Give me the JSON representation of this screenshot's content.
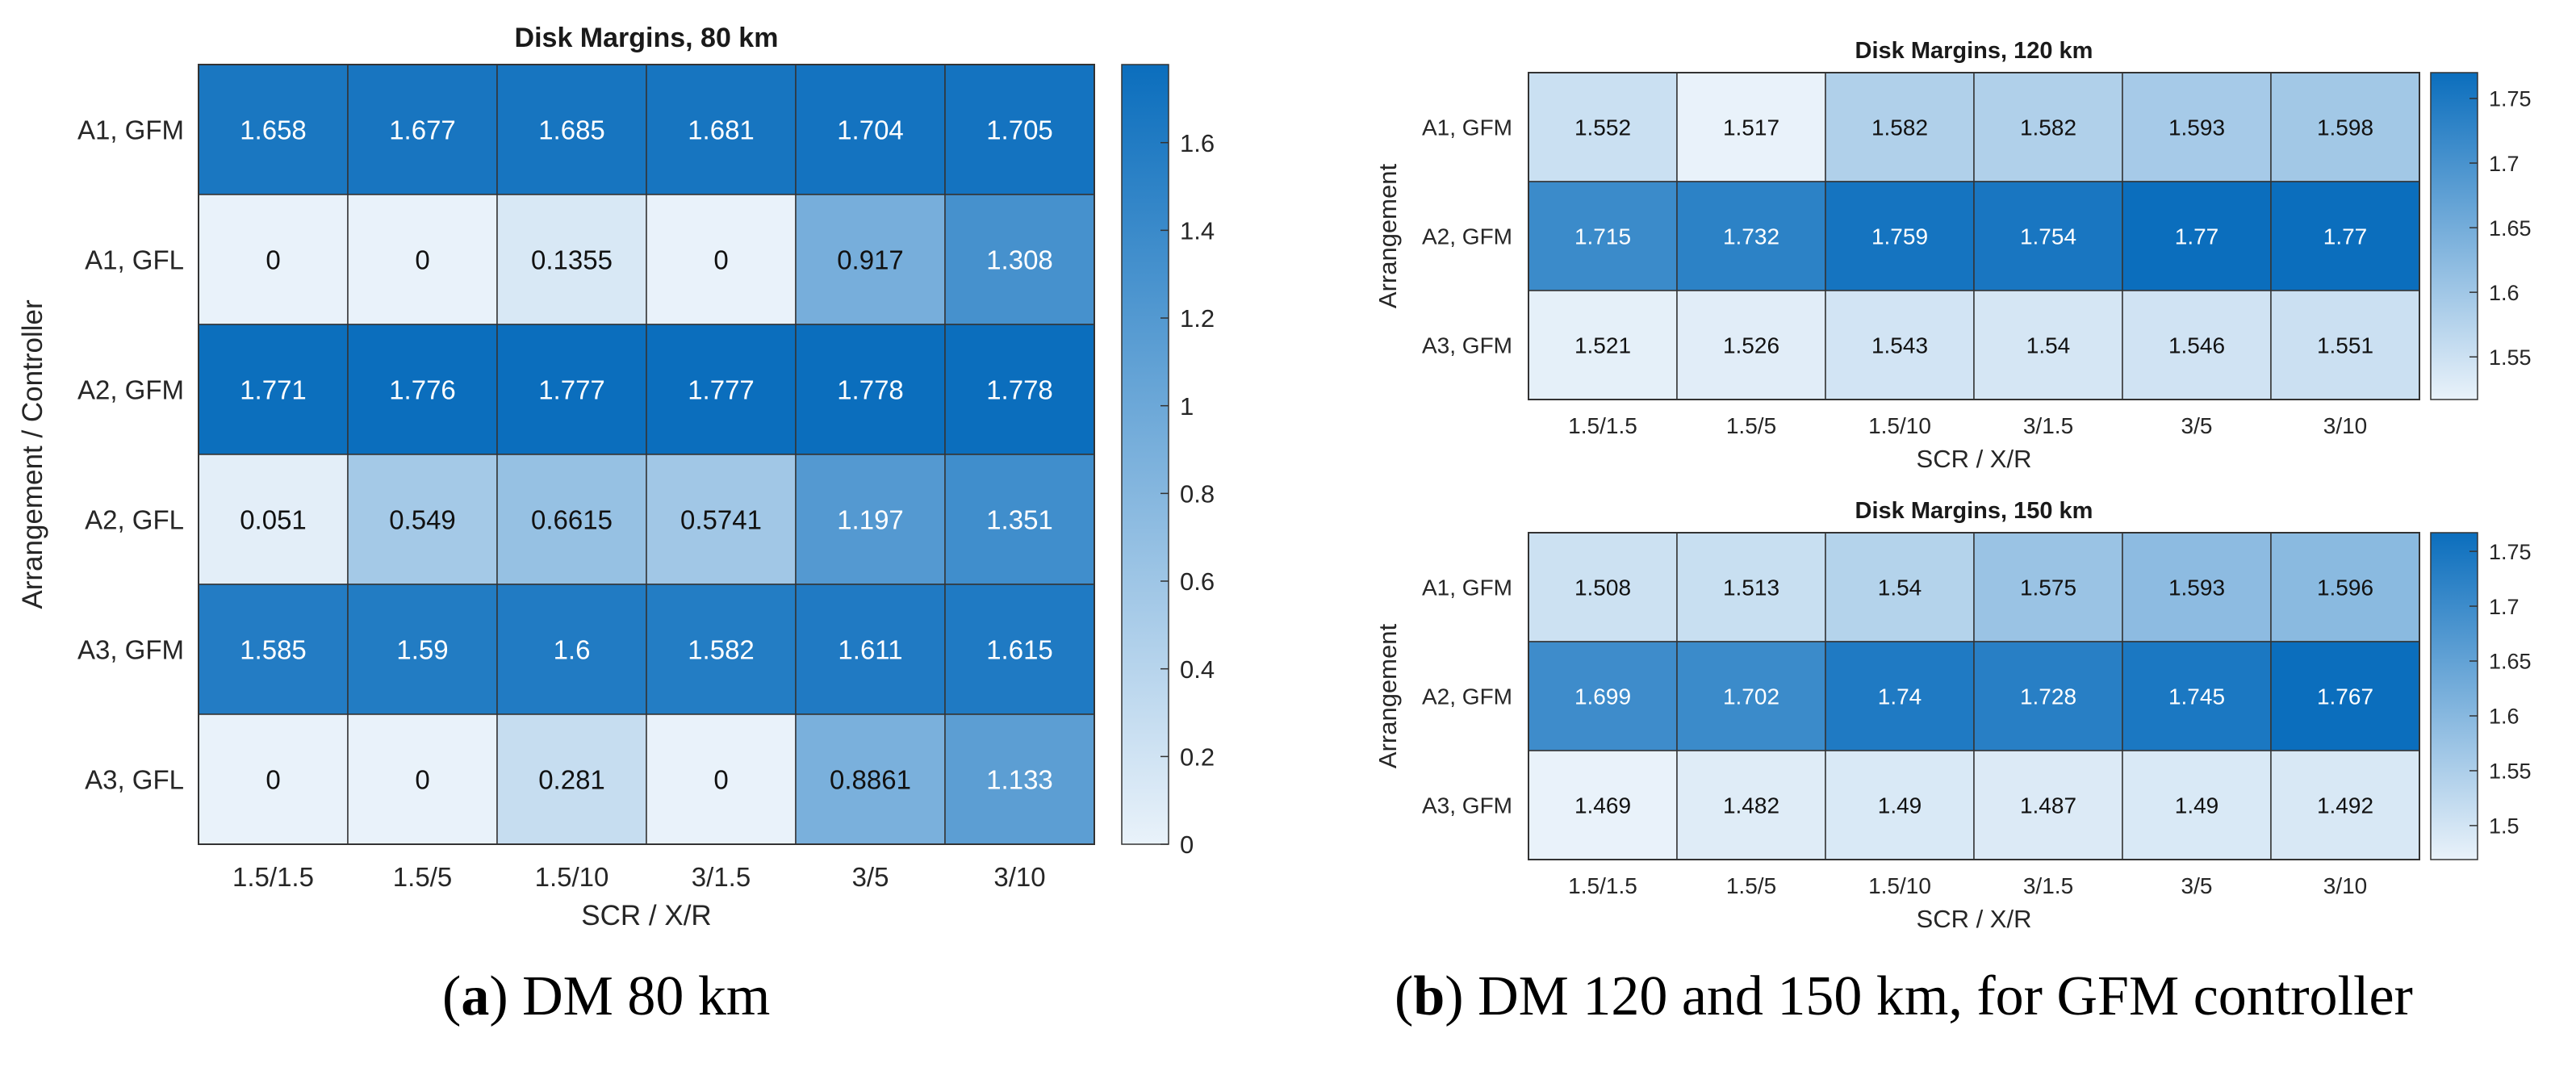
{
  "captions": {
    "a_letter": "a",
    "a_text": "DM 80 km",
    "b_letter": "b",
    "b_text": "DM 120 and 150 km, for GFM controller"
  },
  "chart_data": [
    {
      "type": "heatmap",
      "title": "Disk Margins, 80 km",
      "xlabel": "SCR / X/R",
      "ylabel": "Arrangement / Controller",
      "x": [
        "1.5/1.5",
        "1.5/5",
        "1.5/10",
        "3/1.5",
        "3/5",
        "3/10"
      ],
      "y": [
        "A1, GFM",
        "A1, GFL",
        "A2, GFM",
        "A2, GFL",
        "A3, GFM",
        "A3, GFL"
      ],
      "cell_labels": [
        [
          "1.658",
          "1.677",
          "1.685",
          "1.681",
          "1.704",
          "1.705"
        ],
        [
          "0",
          "0",
          "0.1355",
          "0",
          "0.917",
          "1.308"
        ],
        [
          "1.771",
          "1.776",
          "1.777",
          "1.777",
          "1.778",
          "1.778"
        ],
        [
          "0.051",
          "0.549",
          "0.6615",
          "0.5741",
          "1.197",
          "1.351"
        ],
        [
          "1.585",
          "1.59",
          "1.6",
          "1.582",
          "1.611",
          "1.615"
        ],
        [
          "0",
          "0",
          "0.281",
          "0",
          "0.8861",
          "1.133"
        ]
      ],
      "colorbar": {
        "range": [
          0,
          1.778
        ],
        "ticks": [
          0,
          0.2,
          0.4,
          0.6,
          0.8,
          1,
          1.2,
          1.4,
          1.6
        ],
        "tick_labels": [
          "0",
          "0.2",
          "0.4",
          "0.6",
          "0.8",
          "1",
          "1.2",
          "1.4",
          "1.6"
        ]
      },
      "colormap": {
        "low": "#e9f2fa",
        "high": "#0b6ebd"
      }
    },
    {
      "type": "heatmap",
      "title": "Disk Margins, 120 km",
      "xlabel": "SCR / X/R",
      "ylabel": "Arrangement",
      "x": [
        "1.5/1.5",
        "1.5/5",
        "1.5/10",
        "3/1.5",
        "3/5",
        "3/10"
      ],
      "y": [
        "A1, GFM",
        "A2, GFM",
        "A3, GFM"
      ],
      "cell_labels": [
        [
          "1.552",
          "1.517",
          "1.582",
          "1.582",
          "1.593",
          "1.598"
        ],
        [
          "1.715",
          "1.732",
          "1.759",
          "1.754",
          "1.77",
          "1.77"
        ],
        [
          "1.521",
          "1.526",
          "1.543",
          "1.54",
          "1.546",
          "1.551"
        ]
      ],
      "colorbar": {
        "range": [
          1.517,
          1.77
        ],
        "ticks": [
          1.55,
          1.6,
          1.65,
          1.7,
          1.75
        ],
        "tick_labels": [
          "1.55",
          "1.6",
          "1.65",
          "1.7",
          "1.75"
        ]
      },
      "colormap": {
        "low": "#e9f2fa",
        "high": "#0b6ebd"
      }
    },
    {
      "type": "heatmap",
      "title": "Disk Margins, 150 km",
      "xlabel": "SCR / X/R",
      "ylabel": "Arrangement",
      "x": [
        "1.5/1.5",
        "1.5/5",
        "1.5/10",
        "3/1.5",
        "3/5",
        "3/10"
      ],
      "y": [
        "A1, GFM",
        "A2, GFM",
        "A3, GFM"
      ],
      "cell_labels": [
        [
          "1.508",
          "1.513",
          "1.54",
          "1.575",
          "1.593",
          "1.596"
        ],
        [
          "1.699",
          "1.702",
          "1.74",
          "1.728",
          "1.745",
          "1.767"
        ],
        [
          "1.469",
          "1.482",
          "1.49",
          "1.487",
          "1.49",
          "1.492"
        ]
      ],
      "colorbar": {
        "range": [
          1.469,
          1.767
        ],
        "ticks": [
          1.5,
          1.55,
          1.6,
          1.65,
          1.7,
          1.75
        ],
        "tick_labels": [
          "1.5",
          "1.55",
          "1.6",
          "1.65",
          "1.7",
          "1.75"
        ]
      },
      "colormap": {
        "low": "#e9f2fa",
        "high": "#0b6ebd"
      }
    }
  ]
}
